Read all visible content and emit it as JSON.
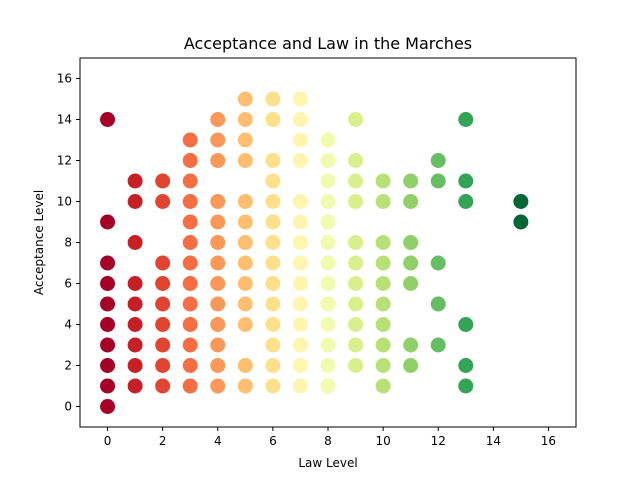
{
  "chart_data": {
    "type": "scatter",
    "title": "Acceptance and Law in the Marches",
    "xlabel": "Law Level",
    "ylabel": "Acceptance Level",
    "xlim": [
      -1,
      17
    ],
    "ylim": [
      -1,
      17
    ],
    "xticks": [
      0,
      2,
      4,
      6,
      8,
      10,
      12,
      14,
      16
    ],
    "yticks": [
      0,
      2,
      4,
      6,
      8,
      10,
      12,
      14,
      16
    ],
    "grid": false,
    "colormap": "RdYlGn",
    "color_by": "x",
    "color_range": [
      0,
      15
    ],
    "points": [
      {
        "x": 0,
        "y": 0
      },
      {
        "x": 0,
        "y": 1
      },
      {
        "x": 0,
        "y": 2
      },
      {
        "x": 0,
        "y": 3
      },
      {
        "x": 0,
        "y": 4
      },
      {
        "x": 0,
        "y": 5
      },
      {
        "x": 0,
        "y": 6
      },
      {
        "x": 0,
        "y": 7
      },
      {
        "x": 0,
        "y": 9
      },
      {
        "x": 0,
        "y": 14
      },
      {
        "x": 1,
        "y": 1
      },
      {
        "x": 1,
        "y": 2
      },
      {
        "x": 1,
        "y": 3
      },
      {
        "x": 1,
        "y": 4
      },
      {
        "x": 1,
        "y": 5
      },
      {
        "x": 1,
        "y": 6
      },
      {
        "x": 1,
        "y": 8
      },
      {
        "x": 1,
        "y": 10
      },
      {
        "x": 1,
        "y": 11
      },
      {
        "x": 2,
        "y": 1
      },
      {
        "x": 2,
        "y": 2
      },
      {
        "x": 2,
        "y": 3
      },
      {
        "x": 2,
        "y": 4
      },
      {
        "x": 2,
        "y": 5
      },
      {
        "x": 2,
        "y": 6
      },
      {
        "x": 2,
        "y": 7
      },
      {
        "x": 2,
        "y": 10
      },
      {
        "x": 2,
        "y": 11
      },
      {
        "x": 3,
        "y": 1
      },
      {
        "x": 3,
        "y": 2
      },
      {
        "x": 3,
        "y": 3
      },
      {
        "x": 3,
        "y": 4
      },
      {
        "x": 3,
        "y": 5
      },
      {
        "x": 3,
        "y": 6
      },
      {
        "x": 3,
        "y": 7
      },
      {
        "x": 3,
        "y": 8
      },
      {
        "x": 3,
        "y": 9
      },
      {
        "x": 3,
        "y": 10
      },
      {
        "x": 3,
        "y": 11
      },
      {
        "x": 3,
        "y": 12
      },
      {
        "x": 3,
        "y": 13
      },
      {
        "x": 4,
        "y": 1
      },
      {
        "x": 4,
        "y": 2
      },
      {
        "x": 4,
        "y": 3
      },
      {
        "x": 4,
        "y": 4
      },
      {
        "x": 4,
        "y": 5
      },
      {
        "x": 4,
        "y": 6
      },
      {
        "x": 4,
        "y": 7
      },
      {
        "x": 4,
        "y": 8
      },
      {
        "x": 4,
        "y": 9
      },
      {
        "x": 4,
        "y": 10
      },
      {
        "x": 4,
        "y": 12
      },
      {
        "x": 4,
        "y": 13
      },
      {
        "x": 4,
        "y": 14
      },
      {
        "x": 5,
        "y": 1
      },
      {
        "x": 5,
        "y": 2
      },
      {
        "x": 5,
        "y": 4
      },
      {
        "x": 5,
        "y": 5
      },
      {
        "x": 5,
        "y": 6
      },
      {
        "x": 5,
        "y": 7
      },
      {
        "x": 5,
        "y": 8
      },
      {
        "x": 5,
        "y": 9
      },
      {
        "x": 5,
        "y": 10
      },
      {
        "x": 5,
        "y": 12
      },
      {
        "x": 5,
        "y": 13
      },
      {
        "x": 5,
        "y": 14
      },
      {
        "x": 5,
        "y": 15
      },
      {
        "x": 6,
        "y": 1
      },
      {
        "x": 6,
        "y": 2
      },
      {
        "x": 6,
        "y": 3
      },
      {
        "x": 6,
        "y": 4
      },
      {
        "x": 6,
        "y": 5
      },
      {
        "x": 6,
        "y": 6
      },
      {
        "x": 6,
        "y": 7
      },
      {
        "x": 6,
        "y": 8
      },
      {
        "x": 6,
        "y": 9
      },
      {
        "x": 6,
        "y": 10
      },
      {
        "x": 6,
        "y": 11
      },
      {
        "x": 6,
        "y": 12
      },
      {
        "x": 6,
        "y": 14
      },
      {
        "x": 6,
        "y": 15
      },
      {
        "x": 7,
        "y": 1
      },
      {
        "x": 7,
        "y": 2
      },
      {
        "x": 7,
        "y": 3
      },
      {
        "x": 7,
        "y": 4
      },
      {
        "x": 7,
        "y": 5
      },
      {
        "x": 7,
        "y": 6
      },
      {
        "x": 7,
        "y": 7
      },
      {
        "x": 7,
        "y": 8
      },
      {
        "x": 7,
        "y": 9
      },
      {
        "x": 7,
        "y": 10
      },
      {
        "x": 7,
        "y": 12
      },
      {
        "x": 7,
        "y": 13
      },
      {
        "x": 7,
        "y": 14
      },
      {
        "x": 7,
        "y": 15
      },
      {
        "x": 8,
        "y": 1
      },
      {
        "x": 8,
        "y": 2
      },
      {
        "x": 8,
        "y": 3
      },
      {
        "x": 8,
        "y": 4
      },
      {
        "x": 8,
        "y": 5
      },
      {
        "x": 8,
        "y": 6
      },
      {
        "x": 8,
        "y": 7
      },
      {
        "x": 8,
        "y": 8
      },
      {
        "x": 8,
        "y": 9
      },
      {
        "x": 8,
        "y": 10
      },
      {
        "x": 8,
        "y": 11
      },
      {
        "x": 8,
        "y": 12
      },
      {
        "x": 8,
        "y": 13
      },
      {
        "x": 9,
        "y": 2
      },
      {
        "x": 9,
        "y": 3
      },
      {
        "x": 9,
        "y": 4
      },
      {
        "x": 9,
        "y": 5
      },
      {
        "x": 9,
        "y": 6
      },
      {
        "x": 9,
        "y": 7
      },
      {
        "x": 9,
        "y": 8
      },
      {
        "x": 9,
        "y": 10
      },
      {
        "x": 9,
        "y": 11
      },
      {
        "x": 9,
        "y": 12
      },
      {
        "x": 9,
        "y": 14
      },
      {
        "x": 10,
        "y": 1
      },
      {
        "x": 10,
        "y": 2
      },
      {
        "x": 10,
        "y": 3
      },
      {
        "x": 10,
        "y": 4
      },
      {
        "x": 10,
        "y": 5
      },
      {
        "x": 10,
        "y": 6
      },
      {
        "x": 10,
        "y": 7
      },
      {
        "x": 10,
        "y": 8
      },
      {
        "x": 10,
        "y": 10
      },
      {
        "x": 10,
        "y": 11
      },
      {
        "x": 11,
        "y": 2
      },
      {
        "x": 11,
        "y": 3
      },
      {
        "x": 11,
        "y": 6
      },
      {
        "x": 11,
        "y": 7
      },
      {
        "x": 11,
        "y": 8
      },
      {
        "x": 11,
        "y": 10
      },
      {
        "x": 11,
        "y": 11
      },
      {
        "x": 12,
        "y": 3
      },
      {
        "x": 12,
        "y": 5
      },
      {
        "x": 12,
        "y": 7
      },
      {
        "x": 12,
        "y": 11
      },
      {
        "x": 12,
        "y": 12
      },
      {
        "x": 13,
        "y": 1
      },
      {
        "x": 13,
        "y": 2
      },
      {
        "x": 13,
        "y": 4
      },
      {
        "x": 13,
        "y": 10
      },
      {
        "x": 13,
        "y": 11
      },
      {
        "x": 13,
        "y": 14
      },
      {
        "x": 15,
        "y": 9
      },
      {
        "x": 15,
        "y": 10
      }
    ]
  }
}
